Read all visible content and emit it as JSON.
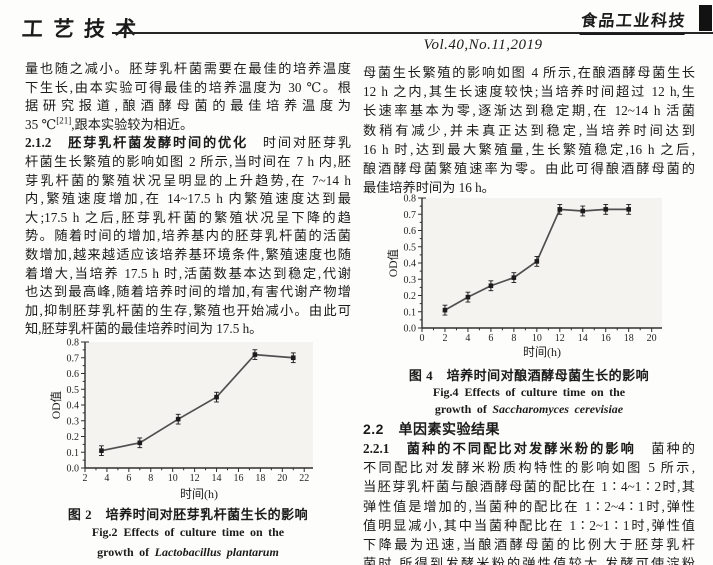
{
  "header": {
    "section_logo": "工艺技术",
    "journal_logo": "食品工业科技",
    "issue": "Vol.40,No.11,2019"
  },
  "left_column": {
    "lines": [
      "量也随之减小。胚芽乳杆菌需要在最佳的培养温度",
      "下生长,由本实验可得最佳的培养温度为 30 ℃。根",
      "据研究报道,酿酒酵母菌的最佳培养温度为",
      {
        "segs": [
          {
            "t": "35 ℃"
          },
          {
            "t": "[21]",
            "sup": true
          },
          {
            "t": ",跟本实验较为相近。"
          }
        ],
        "end": true
      },
      {
        "segs": [
          {
            "t": "2.1.2　胚芽乳杆菌发酵时间的优化",
            "b": true
          },
          {
            "t": "　时间对胚芽乳"
          }
        ]
      },
      "杆菌生长繁殖的影响如图 2 所示,当时间在 7 h 内,胚",
      "芽乳杆菌的繁殖状况呈明显的上升趋势,在 7~14 h",
      "内,繁殖速度增加,在 14~17.5 h 内繁殖速度达到最",
      "大;17.5 h 之后,胚芽乳杆菌的繁殖状况呈下降的趋",
      "势。随着时间的增加,培养基内的胚芽乳杆菌的活菌",
      "数增加,越来越适应该培养基环境条件,繁殖速度也随",
      "着增大,当培养 17.5 h 时,活菌数基本达到稳定,代谢",
      "也达到最高峰,随着培养时间的增加,有害代谢产物增",
      "加,抑制胚芽乳杆菌的生存,繁殖也开始减小。由此可",
      {
        "segs": [
          {
            "t": "知,胚芽乳杆菌的最佳培养时间为 17.5 h。"
          }
        ],
        "end": true
      }
    ]
  },
  "right_column": {
    "lines_top": [
      "母菌生长繁殖的影响如图 4 所示,在酿酒酵母菌生长",
      "12 h 之内,其生长速度较快;当培养时间超过 12 h,生",
      "长速率基本为零,逐渐达到稳定期,在 12~14 h 活菌",
      "数稍有减少,并未真正达到稳定,当培养时间达到",
      "16 h 时,达到最大繁殖量,生长繁殖稳定,16 h 之后,",
      "酿酒酵母菌繁殖速率为零。由此可得酿酒酵母菌的",
      {
        "segs": [
          {
            "t": "最佳培养时间为 16 h。"
          }
        ],
        "end": true
      }
    ],
    "section_heading": "2.2　单因素实验结果",
    "lines_bottom": [
      {
        "segs": [
          {
            "t": "2.2.1　菌种的不同配比对发酵米粉的影响",
            "b": true
          },
          {
            "t": "　菌种的"
          }
        ]
      },
      "不同配比对发酵米粉质构特性的影响如图 5 所示,",
      "当胚芽乳杆菌与酿酒酵母菌的配比在 1∶4~1∶2时,其",
      "弹性值是增加的,当菌种的配比在 1∶2~4∶1时,弹性",
      "值明显减小,其中当菌种配比在 1∶2~1∶1时,弹性值",
      "下降最为迅速,当酿酒酵母菌的比例大于胚芽乳杆",
      "菌时,所得到发酵米粉的弹性值较大,发酵可使淀粉"
    ]
  },
  "figures": {
    "fig2": {
      "caption_cn": "图 2　培养时间对胚芽乳杆菌生长的影响",
      "caption_en_line1": "Fig.2 Effects of culture time on the",
      "caption_en_prefix": "growth of ",
      "caption_en_species": "Lactobacillus plantarum"
    },
    "fig4": {
      "caption_cn": "图 4　培养时间对酿酒酵母菌生长的影响",
      "caption_en_line1": "Fig.4 Effects of culture time on the",
      "caption_en_prefix": "growth of ",
      "caption_en_species": "Saccharomyces cerevisiae"
    }
  },
  "chart_data": [
    {
      "type": "line",
      "figure": "fig2",
      "xlabel": "时间(h)",
      "ylabel": "OD值",
      "x": [
        3.5,
        7,
        10.5,
        14,
        17.5,
        21
      ],
      "y": [
        0.11,
        0.16,
        0.31,
        0.45,
        0.72,
        0.7
      ],
      "xlim": [
        2,
        22.8
      ],
      "ylim": [
        0,
        0.8
      ],
      "xticks": [
        2,
        4,
        6,
        8,
        10,
        12,
        14,
        16,
        18,
        20,
        22
      ],
      "yticks": [
        0.0,
        0.1,
        0.2,
        0.3,
        0.4,
        0.5,
        0.6,
        0.7,
        0.8
      ],
      "error_bar": 0.015,
      "line_color": "#4f4f4f",
      "marker_color": "#1c1c1c",
      "plot_bg": "#f5f3f0",
      "legend": "none",
      "grid": false
    },
    {
      "type": "line",
      "figure": "fig4",
      "xlabel": "时间(h)",
      "ylabel": "OD值",
      "x": [
        2,
        4,
        6,
        8,
        10,
        12,
        14,
        16,
        18
      ],
      "y": [
        0.11,
        0.19,
        0.26,
        0.31,
        0.41,
        0.73,
        0.72,
        0.73,
        0.73
      ],
      "xlim": [
        0,
        20.9
      ],
      "ylim": [
        0,
        0.8
      ],
      "xticks": [
        0,
        2,
        4,
        6,
        8,
        10,
        12,
        14,
        16,
        18,
        20
      ],
      "yticks": [
        0.0,
        0.1,
        0.2,
        0.3,
        0.4,
        0.5,
        0.6,
        0.7,
        0.8
      ],
      "error_bar": 0.015,
      "line_color": "#4f4f4f",
      "marker_color": "#1c1c1c",
      "plot_bg": "#f5f3f0",
      "legend": "none",
      "grid": false
    }
  ]
}
